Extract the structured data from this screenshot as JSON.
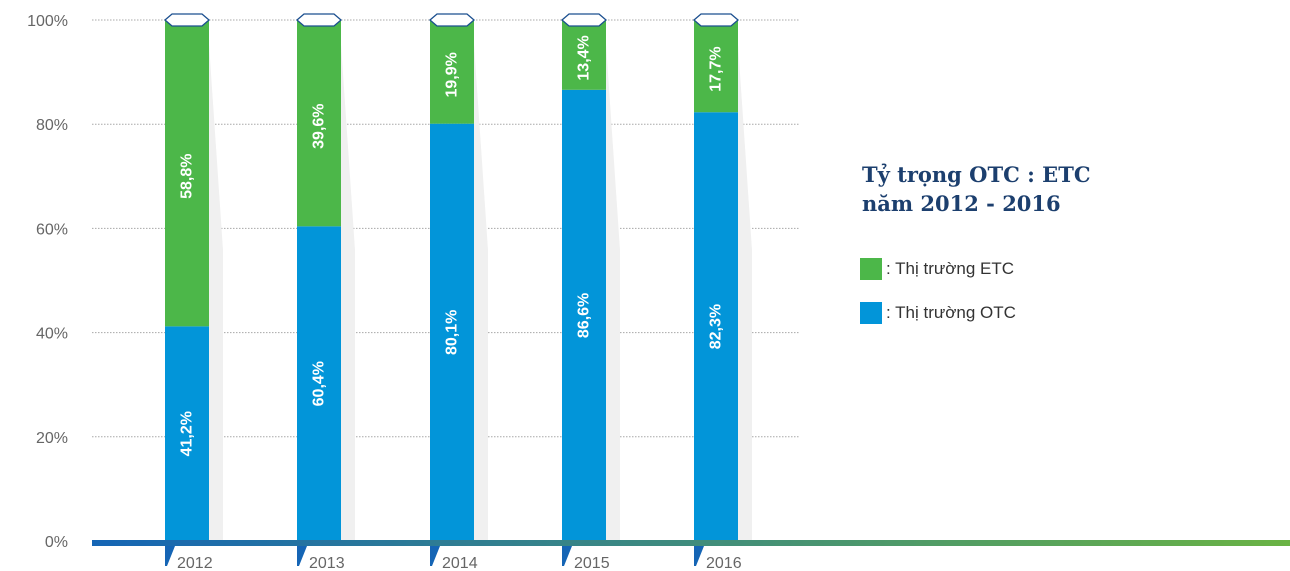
{
  "chart_data": {
    "type": "bar",
    "stacked": true,
    "categories": [
      "2012",
      "2013",
      "2014",
      "2015",
      "2016"
    ],
    "series": [
      {
        "name": "Thị trường OTC",
        "legend_label": ": Thị trường OTC",
        "color": "#0295d9",
        "values": [
          41.2,
          60.4,
          80.1,
          86.6,
          82.3
        ],
        "labels": [
          "41,2%",
          "60,4%",
          "80,1%",
          "86,6%",
          "82,3%"
        ]
      },
      {
        "name": "Thị trường ETC",
        "legend_label": ": Thị trường ETC",
        "color": "#4cb749",
        "values": [
          58.8,
          39.6,
          19.9,
          13.4,
          17.7
        ],
        "labels": [
          "58,8%",
          "39,6%",
          "19,9%",
          "13,4%",
          "17,7%"
        ]
      }
    ],
    "title_line1": "Tỷ trọng OTC : ETC",
    "title_line2": "năm 2012 - 2016",
    "ylim": [
      0,
      100
    ],
    "yticks": [
      0,
      20,
      40,
      60,
      80,
      100
    ],
    "ytick_labels": [
      "0%",
      "20%",
      "40%",
      "60%",
      "80%",
      "100%"
    ],
    "grid": true,
    "legend_position": "right",
    "axis_color_start": "#1565b5",
    "axis_color_end": "#6ab344",
    "text_color": "#666666"
  }
}
